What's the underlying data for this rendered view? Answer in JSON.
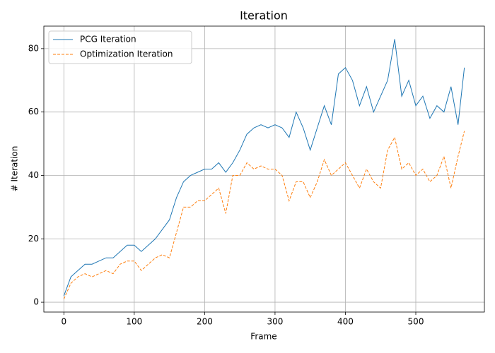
{
  "chart_data": {
    "type": "line",
    "title": "Iteration",
    "xlabel": "Frame",
    "ylabel": "# Iteration",
    "x": [
      0,
      10,
      20,
      30,
      40,
      50,
      60,
      70,
      80,
      90,
      100,
      110,
      120,
      130,
      140,
      150,
      160,
      170,
      180,
      190,
      200,
      210,
      220,
      230,
      240,
      250,
      260,
      270,
      280,
      290,
      300,
      310,
      320,
      330,
      340,
      350,
      360,
      370,
      380,
      390,
      400,
      410,
      420,
      430,
      440,
      450,
      460,
      470,
      480,
      490,
      500,
      510,
      520,
      530,
      540,
      550,
      560,
      569
    ],
    "series": [
      {
        "name": "PCG Iteration",
        "color": "#1f77b4",
        "linestyle": "solid",
        "values": [
          2,
          8,
          10,
          12,
          12,
          13,
          14,
          14,
          16,
          18,
          18,
          16,
          18,
          20,
          23,
          26,
          33,
          38,
          40,
          41,
          42,
          42,
          44,
          41,
          44,
          48,
          53,
          55,
          56,
          55,
          56,
          55,
          52,
          60,
          55,
          48,
          55,
          62,
          56,
          72,
          74,
          70,
          62,
          68,
          60,
          65,
          70,
          83,
          65,
          70,
          62,
          65,
          58,
          62,
          60,
          68,
          56,
          74
        ]
      },
      {
        "name": "Optimization Iteration",
        "color": "#ff7f0e",
        "linestyle": "dashed",
        "values": [
          1,
          6,
          8,
          9,
          8,
          9,
          10,
          9,
          12,
          13,
          13,
          10,
          12,
          14,
          15,
          14,
          22,
          30,
          30,
          32,
          32,
          34,
          36,
          28,
          40,
          40,
          44,
          42,
          43,
          42,
          42,
          40,
          32,
          38,
          38,
          33,
          38,
          45,
          40,
          42,
          44,
          40,
          36,
          42,
          38,
          36,
          48,
          52,
          42,
          44,
          40,
          42,
          38,
          40,
          46,
          36,
          46,
          54
        ]
      }
    ],
    "xlim": [
      -28.45,
      597.45
    ],
    "ylim": [
      -3.1,
      87.1
    ],
    "xticks": [
      0,
      100,
      200,
      300,
      400,
      500
    ],
    "yticks": [
      0,
      20,
      40,
      60,
      80
    ],
    "grid": true,
    "legend": "upper left"
  }
}
